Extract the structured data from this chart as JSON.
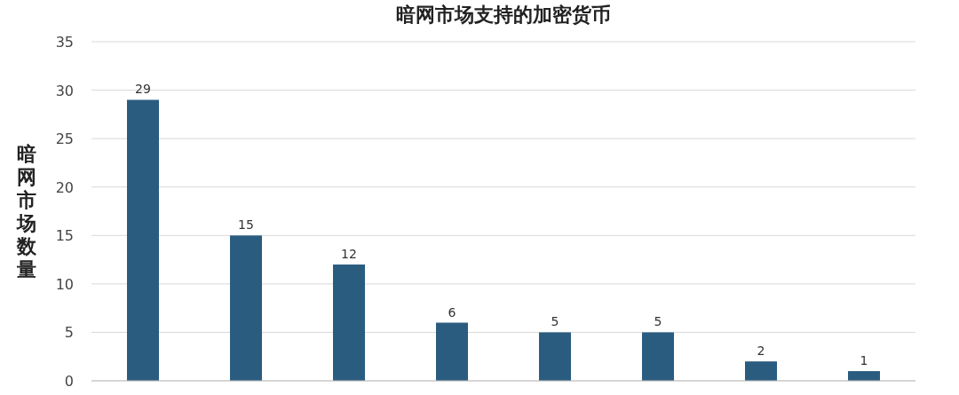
{
  "chart_data": {
    "type": "bar",
    "title": "暗网市场支持的加密货币",
    "ylabel": "暗网市场数量",
    "categories": [
      null,
      null,
      null,
      null,
      null,
      null,
      null,
      null
    ],
    "values": [
      29,
      15,
      12,
      6,
      5,
      5,
      2,
      1
    ],
    "color": "#2a5c80",
    "ylim": [
      0,
      35
    ],
    "yticks": [
      0,
      5,
      10,
      15,
      20,
      25,
      30,
      35
    ],
    "grid": "y",
    "data_labels": true
  }
}
